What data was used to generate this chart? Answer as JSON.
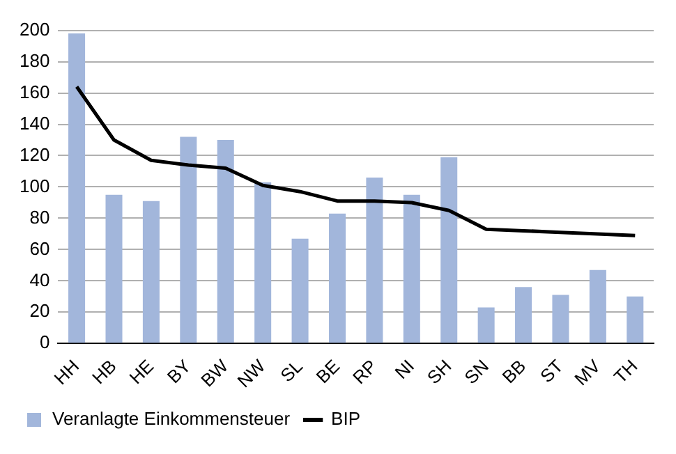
{
  "chart_data": {
    "type": "bar",
    "categories": [
      "HH",
      "HB",
      "HE",
      "BY",
      "BW",
      "NW",
      "SL",
      "BE",
      "RP",
      "NI",
      "SH",
      "SN",
      "BB",
      "ST",
      "MV",
      "TH"
    ],
    "series": [
      {
        "name": "Veranlagte Einkommensteuer",
        "color": "#a2b6db",
        "values": [
          198,
          95,
          91,
          132,
          130,
          103,
          67,
          83,
          106,
          95,
          119,
          23,
          36,
          31,
          47,
          30
        ]
      },
      {
        "name": "BIP",
        "type": "line",
        "color": "#000000",
        "values": [
          164,
          130,
          117,
          114,
          112,
          101,
          97,
          91,
          91,
          90,
          85,
          73,
          72,
          71,
          70,
          69
        ]
      }
    ],
    "ylim": [
      0,
      200
    ],
    "yticks": [
      0,
      20,
      40,
      60,
      80,
      100,
      120,
      140,
      160,
      180,
      200
    ],
    "grid": "y",
    "legend": "bottom",
    "marker": "none",
    "line_style": "solid"
  }
}
